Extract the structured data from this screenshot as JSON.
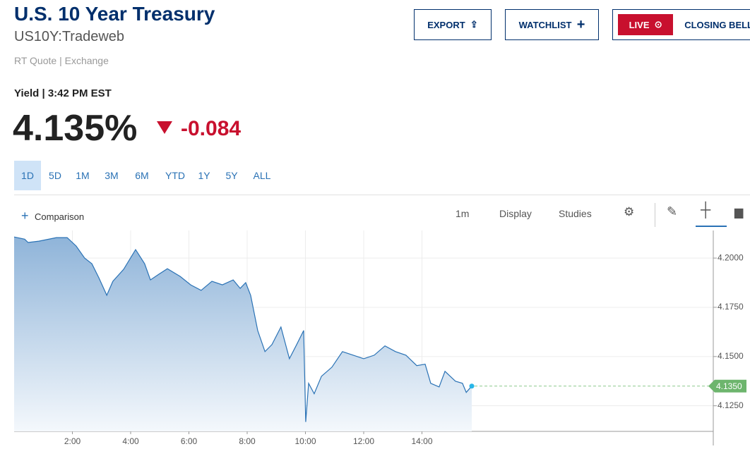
{
  "header": {
    "title": "U.S. 10 Year Treasury",
    "symbol": "US10Y:Tradeweb",
    "source": "RT Quote | Exchange",
    "buttons": [
      "EXPORT",
      "WATCHLIST",
      "LIVE",
      "CLOSING BELL"
    ]
  },
  "quote": {
    "label": "Yield | 3:42 PM EST",
    "price": "4.135%",
    "change": "-0.084"
  },
  "ranges": [
    "1D",
    "5D",
    "1M",
    "3M",
    "6M",
    "YTD",
    "1Y",
    "5Y",
    "ALL"
  ],
  "toolbar": {
    "comparison": "Comparison",
    "interval": "1m",
    "display": "Display",
    "studies": "Studies"
  },
  "chart_data": {
    "type": "line",
    "xlim": [
      0,
      24
    ],
    "ylim": [
      4.112,
      4.214
    ],
    "xticks": [
      {
        "value": 2,
        "label": "2:00"
      },
      {
        "value": 4,
        "label": "4:00"
      },
      {
        "value": 6,
        "label": "6:00"
      },
      {
        "value": 8,
        "label": "8:00"
      },
      {
        "value": 10,
        "label": "10:00"
      },
      {
        "value": 12,
        "label": "12:00"
      },
      {
        "value": 14,
        "label": "14:00"
      }
    ],
    "yticks": [
      {
        "value": 4.125,
        "label": "4.1250"
      },
      {
        "value": 4.15,
        "label": "4.1500"
      },
      {
        "value": 4.175,
        "label": "4.1750"
      },
      {
        "value": 4.2,
        "label": "4.2000"
      }
    ],
    "grid": true,
    "series": [
      {
        "color": "#2a72b5",
        "x": [
          0.0,
          0.36,
          0.48,
          0.85,
          1.45,
          1.82,
          2.13,
          2.42,
          2.67,
          2.91,
          3.18,
          3.39,
          3.76,
          4.17,
          4.48,
          4.68,
          4.97,
          5.26,
          5.7,
          6.06,
          6.42,
          6.79,
          7.15,
          7.52,
          7.76,
          7.95,
          8.12,
          8.36,
          8.61,
          8.85,
          9.16,
          9.45,
          9.7,
          9.94,
          10.01,
          10.11,
          10.3,
          10.55,
          10.91,
          11.27,
          11.64,
          12.0,
          12.36,
          12.73,
          13.09,
          13.45,
          13.82,
          14.11,
          14.3,
          14.59,
          14.79,
          15.15,
          15.39,
          15.52,
          15.71
        ],
        "values": [
          4.2107,
          4.2096,
          4.2079,
          4.2086,
          4.2104,
          4.2104,
          4.2061,
          4.2,
          4.1971,
          4.19,
          4.1811,
          4.1882,
          4.1943,
          4.2043,
          4.1971,
          4.1889,
          4.1918,
          4.1946,
          4.1907,
          4.1864,
          4.1836,
          4.1882,
          4.1864,
          4.1889,
          4.1846,
          4.1875,
          4.1811,
          4.1632,
          4.1525,
          4.1561,
          4.165,
          4.1489,
          4.1561,
          4.1632,
          4.1168,
          4.1364,
          4.1311,
          4.14,
          4.1446,
          4.1525,
          4.1507,
          4.1489,
          4.1507,
          4.1554,
          4.1525,
          4.1507,
          4.1454,
          4.1461,
          4.1364,
          4.1346,
          4.1425,
          4.1375,
          4.1364,
          4.1318,
          4.135
        ]
      }
    ],
    "current": {
      "value": 4.135,
      "label": "4.1350"
    }
  }
}
